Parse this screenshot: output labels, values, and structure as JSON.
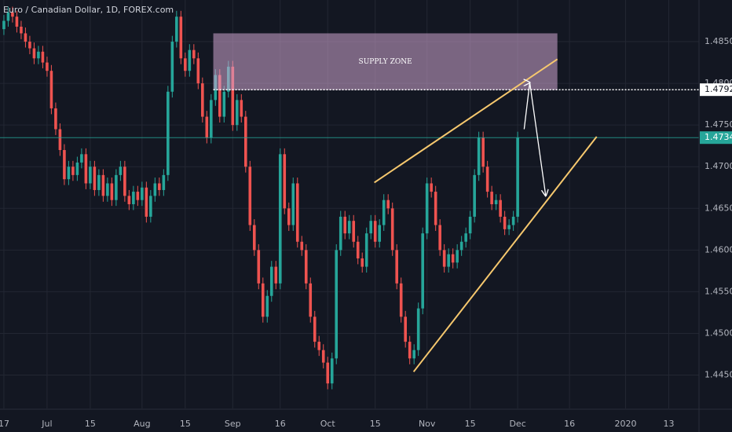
{
  "chart_data": {
    "type": "candlestick",
    "title": "Euro / Canadian Dollar, 1D, FOREX.com",
    "up_color": "#26a69a",
    "down_color": "#ef5350",
    "xlim": [
      -0.9,
      161
    ],
    "ylim": [
      1.441,
      1.49
    ],
    "xticks": [
      {
        "value": 0,
        "label": "17"
      },
      {
        "value": 10,
        "label": "Jul"
      },
      {
        "value": 20,
        "label": "15"
      },
      {
        "value": 32,
        "label": "Aug"
      },
      {
        "value": 42,
        "label": "15"
      },
      {
        "value": 53,
        "label": "Sep"
      },
      {
        "value": 64,
        "label": "16"
      },
      {
        "value": 75,
        "label": "Oct"
      },
      {
        "value": 86,
        "label": "15"
      },
      {
        "value": 98,
        "label": "Nov"
      },
      {
        "value": 108,
        "label": "15"
      },
      {
        "value": 119,
        "label": "Dec"
      },
      {
        "value": 131,
        "label": "16"
      },
      {
        "value": 144,
        "label": "2020"
      },
      {
        "value": 154,
        "label": "13"
      }
    ],
    "yticks": [
      {
        "value": 1.485,
        "label": "1.48500"
      },
      {
        "value": 1.48,
        "label": "1.48000"
      },
      {
        "value": 1.475,
        "label": "1.47500"
      },
      {
        "value": 1.47,
        "label": "1.47000"
      },
      {
        "value": 1.465,
        "label": "1.46500"
      },
      {
        "value": 1.46,
        "label": "1.46000"
      },
      {
        "value": 1.455,
        "label": "1.45500"
      },
      {
        "value": 1.45,
        "label": "1.45000"
      },
      {
        "value": 1.445,
        "label": "1.44500"
      }
    ],
    "grid": true,
    "x": [
      0,
      1,
      2,
      3,
      4,
      5,
      6,
      7,
      8,
      9,
      10,
      11,
      12,
      13,
      14,
      15,
      16,
      17,
      18,
      19,
      20,
      21,
      22,
      23,
      24,
      25,
      26,
      27,
      28,
      29,
      30,
      31,
      32,
      33,
      34,
      35,
      36,
      37,
      38,
      39,
      40,
      41,
      42,
      43,
      44,
      45,
      46,
      47,
      48,
      49,
      50,
      51,
      52,
      53,
      54,
      55,
      56,
      57,
      58,
      59,
      60,
      61,
      62,
      63,
      64,
      65,
      66,
      67,
      68,
      69,
      70,
      71,
      72,
      73,
      74,
      75,
      76,
      77,
      78,
      79,
      80,
      81,
      82,
      83,
      84,
      85,
      86,
      87,
      88,
      89,
      90,
      91,
      92,
      93,
      94,
      95,
      96,
      97,
      98,
      99,
      100,
      101,
      102,
      103,
      104,
      105,
      106,
      107,
      108,
      109,
      110,
      111,
      112,
      113,
      114,
      115,
      116,
      117,
      118,
      119
    ],
    "open": [
      1.4865,
      1.4875,
      1.4885,
      1.488,
      1.4868,
      1.486,
      1.485,
      1.4842,
      1.483,
      1.4838,
      1.4825,
      1.4815,
      1.477,
      1.4745,
      1.472,
      1.4685,
      1.47,
      1.469,
      1.4705,
      1.4715,
      1.468,
      1.47,
      1.4672,
      1.469,
      1.4665,
      1.468,
      1.466,
      1.469,
      1.47,
      1.4665,
      1.4655,
      1.467,
      1.466,
      1.4675,
      1.464,
      1.4665,
      1.468,
      1.4672,
      1.469,
      1.479,
      1.485,
      1.488,
      1.483,
      1.4815,
      1.484,
      1.483,
      1.48,
      1.476,
      1.4735,
      1.478,
      1.481,
      1.476,
      1.479,
      1.482,
      1.475,
      1.478,
      1.476,
      1.47,
      1.463,
      1.46,
      1.456,
      1.452,
      1.4545,
      1.458,
      1.456,
      1.4715,
      1.465,
      1.463,
      1.468,
      1.461,
      1.46,
      1.456,
      1.452,
      1.449,
      1.448,
      1.4465,
      1.444,
      1.447,
      1.46,
      1.464,
      1.462,
      1.4635,
      1.461,
      1.459,
      1.458,
      1.462,
      1.4635,
      1.461,
      1.463,
      1.466,
      1.465,
      1.46,
      1.456,
      1.452,
      1.449,
      1.447,
      1.448,
      1.453,
      1.462,
      1.468,
      1.467,
      1.463,
      1.46,
      1.458,
      1.4595,
      1.4585,
      1.46,
      1.461,
      1.462,
      1.464,
      1.469,
      1.4735,
      1.47,
      1.467,
      1.4655,
      1.466,
      1.464,
      1.4625,
      1.463,
      1.464
    ],
    "high": [
      1.4882,
      1.4892,
      1.4892,
      1.4887,
      1.4875,
      1.4867,
      1.4857,
      1.4849,
      1.4845,
      1.4845,
      1.4832,
      1.4822,
      1.4777,
      1.4752,
      1.4727,
      1.4707,
      1.4707,
      1.4712,
      1.4722,
      1.4722,
      1.4707,
      1.4707,
      1.4697,
      1.4697,
      1.4687,
      1.4687,
      1.4697,
      1.4707,
      1.4707,
      1.4672,
      1.4677,
      1.4677,
      1.4682,
      1.4682,
      1.4672,
      1.4687,
      1.4687,
      1.4697,
      1.4797,
      1.4857,
      1.4887,
      1.4887,
      1.4837,
      1.4847,
      1.4847,
      1.4837,
      1.4807,
      1.4767,
      1.4787,
      1.4817,
      1.4817,
      1.4797,
      1.4827,
      1.4827,
      1.4787,
      1.4787,
      1.4767,
      1.4707,
      1.4637,
      1.4607,
      1.4567,
      1.4552,
      1.4587,
      1.4587,
      1.4722,
      1.4722,
      1.4657,
      1.4687,
      1.4687,
      1.4617,
      1.4607,
      1.4567,
      1.4527,
      1.4497,
      1.4487,
      1.4472,
      1.4477,
      1.4607,
      1.4647,
      1.4647,
      1.4642,
      1.4642,
      1.4617,
      1.4597,
      1.4627,
      1.4642,
      1.4642,
      1.4637,
      1.4667,
      1.4667,
      1.4657,
      1.4607,
      1.4567,
      1.4527,
      1.4497,
      1.4487,
      1.4537,
      1.4627,
      1.4687,
      1.4687,
      1.4677,
      1.4637,
      1.4607,
      1.4602,
      1.4602,
      1.4607,
      1.4617,
      1.4627,
      1.4647,
      1.4697,
      1.4742,
      1.4742,
      1.4707,
      1.4677,
      1.4667,
      1.4667,
      1.4647,
      1.4637,
      1.4647,
      1.4742
    ],
    "low": [
      1.4858,
      1.4868,
      1.4873,
      1.4861,
      1.4853,
      1.4843,
      1.4835,
      1.4823,
      1.4823,
      1.4818,
      1.4808,
      1.4763,
      1.4738,
      1.4713,
      1.4678,
      1.4678,
      1.4683,
      1.4683,
      1.4698,
      1.4673,
      1.4673,
      1.4665,
      1.4665,
      1.4658,
      1.4658,
      1.4653,
      1.4653,
      1.4683,
      1.4658,
      1.4648,
      1.4648,
      1.4653,
      1.4653,
      1.4633,
      1.4633,
      1.4658,
      1.4665,
      1.4665,
      1.4683,
      1.4783,
      1.4843,
      1.4823,
      1.4808,
      1.4808,
      1.4823,
      1.4793,
      1.4753,
      1.4728,
      1.4728,
      1.4773,
      1.4753,
      1.4753,
      1.4783,
      1.4743,
      1.4743,
      1.4753,
      1.4693,
      1.4623,
      1.4593,
      1.4553,
      1.4513,
      1.4513,
      1.4538,
      1.4553,
      1.4553,
      1.4643,
      1.4623,
      1.4623,
      1.4603,
      1.4593,
      1.4553,
      1.4513,
      1.4483,
      1.4473,
      1.4458,
      1.4433,
      1.4433,
      1.4463,
      1.4593,
      1.4613,
      1.4613,
      1.4603,
      1.4583,
      1.4573,
      1.4573,
      1.4613,
      1.4603,
      1.4603,
      1.4623,
      1.4643,
      1.4593,
      1.4553,
      1.4513,
      1.4483,
      1.4463,
      1.4463,
      1.4473,
      1.4523,
      1.4613,
      1.4663,
      1.4623,
      1.4593,
      1.4573,
      1.4573,
      1.4578,
      1.4578,
      1.4593,
      1.4603,
      1.4613,
      1.4633,
      1.4683,
      1.4693,
      1.4663,
      1.4648,
      1.4648,
      1.4633,
      1.4618,
      1.4618,
      1.4623,
      1.4633
    ],
    "close": [
      1.4875,
      1.4885,
      1.488,
      1.4868,
      1.486,
      1.485,
      1.4842,
      1.483,
      1.4838,
      1.4825,
      1.4815,
      1.477,
      1.4745,
      1.472,
      1.4685,
      1.47,
      1.469,
      1.4705,
      1.4715,
      1.468,
      1.47,
      1.4672,
      1.469,
      1.4665,
      1.468,
      1.466,
      1.469,
      1.47,
      1.4665,
      1.4655,
      1.467,
      1.466,
      1.4675,
      1.464,
      1.4665,
      1.468,
      1.4672,
      1.469,
      1.479,
      1.485,
      1.488,
      1.483,
      1.4815,
      1.484,
      1.483,
      1.48,
      1.476,
      1.4735,
      1.478,
      1.481,
      1.476,
      1.479,
      1.482,
      1.475,
      1.478,
      1.476,
      1.47,
      1.463,
      1.46,
      1.456,
      1.452,
      1.4545,
      1.458,
      1.456,
      1.4715,
      1.465,
      1.463,
      1.468,
      1.461,
      1.46,
      1.456,
      1.452,
      1.449,
      1.448,
      1.4465,
      1.444,
      1.447,
      1.46,
      1.464,
      1.462,
      1.4635,
      1.461,
      1.459,
      1.458,
      1.462,
      1.4635,
      1.461,
      1.463,
      1.466,
      1.465,
      1.46,
      1.456,
      1.452,
      1.449,
      1.447,
      1.448,
      1.453,
      1.462,
      1.468,
      1.467,
      1.463,
      1.46,
      1.458,
      1.4595,
      1.4585,
      1.46,
      1.461,
      1.462,
      1.464,
      1.469,
      1.4735,
      1.47,
      1.467,
      1.4655,
      1.466,
      1.464,
      1.4625,
      1.463,
      1.464,
      1.47349
    ],
    "zone": {
      "label": "SUPPLY ZONE",
      "x": [
        48.5,
        128.2
      ],
      "y": [
        1.4792,
        1.486
      ]
    },
    "level": 1.47924,
    "last_price": 1.47349,
    "trend_lines": [
      {
        "x": [
          85.8,
          128.2
        ],
        "y": [
          1.4681,
          1.4829
        ]
      },
      {
        "x": [
          94.9,
          137.3
        ],
        "y": [
          1.4454,
          1.4736
        ]
      }
    ],
    "arrow": {
      "x": [
        120.5,
        121.8,
        125.5
      ],
      "y": [
        1.4745,
        1.4801,
        1.4665
      ]
    }
  }
}
